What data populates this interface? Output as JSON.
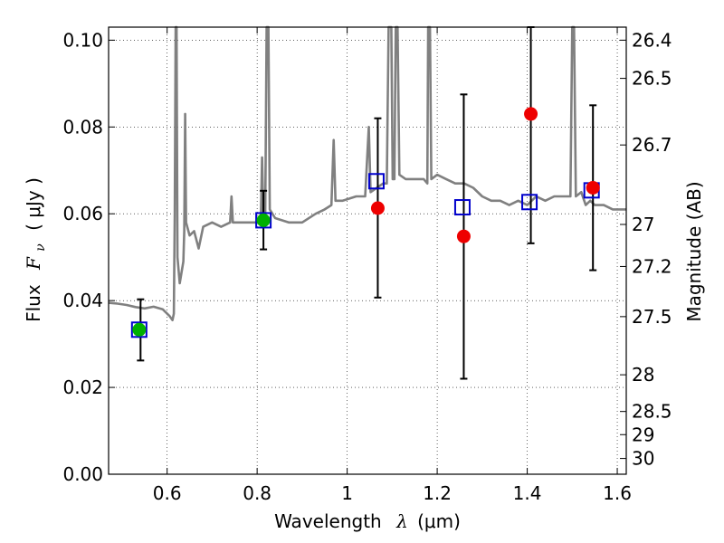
{
  "chart_data": {
    "type": "scatter",
    "title": "",
    "xlabel_prefix": "Wavelength",
    "xlabel_symbol": "λ",
    "xlabel_unit": "(μm)",
    "ylabel_prefix": "Flux",
    "ylabel_symbol": "F",
    "ylabel_sub": "ν",
    "ylabel_unit": "( μJy )",
    "y2label": "Magnitude (AB)",
    "xlim": [
      0.47,
      1.62
    ],
    "ylim": [
      0.0,
      0.103
    ],
    "grid": true,
    "x_ticks": [
      0.6,
      0.8,
      1.0,
      1.2,
      1.4,
      1.6
    ],
    "x_tick_labels": [
      "0.6",
      "0.8",
      "1",
      "1.2",
      "1.4",
      "1.6"
    ],
    "y_ticks": [
      0.0,
      0.02,
      0.04,
      0.06,
      0.08,
      0.1
    ],
    "y_tick_labels": [
      "0.00",
      "0.02",
      "0.04",
      "0.06",
      "0.08",
      "0.10"
    ],
    "mag_ticks": [
      {
        "value": 26.4,
        "label": "26.4"
      },
      {
        "value": 26.5,
        "label": "26.5"
      },
      {
        "value": 26.7,
        "label": "26.7"
      },
      {
        "value": 27.0,
        "label": "27"
      },
      {
        "value": 27.2,
        "label": "27.2"
      },
      {
        "value": 27.5,
        "label": "27.5"
      },
      {
        "value": 28.0,
        "label": "28"
      },
      {
        "value": 28.5,
        "label": "28.5"
      },
      {
        "value": 29.0,
        "label": "29"
      },
      {
        "value": 30.0,
        "label": "30"
      }
    ],
    "series": [
      {
        "name": "model spectrum",
        "kind": "line",
        "color": "#808080",
        "points": [
          [
            0.47,
            0.0395
          ],
          [
            0.49,
            0.0393
          ],
          [
            0.51,
            0.039
          ],
          [
            0.53,
            0.0385
          ],
          [
            0.55,
            0.0382
          ],
          [
            0.57,
            0.0386
          ],
          [
            0.59,
            0.038
          ],
          [
            0.605,
            0.0365
          ],
          [
            0.612,
            0.0355
          ],
          [
            0.615,
            0.037
          ],
          [
            0.617,
            0.06
          ],
          [
            0.619,
            0.103
          ],
          [
            0.621,
            0.103
          ],
          [
            0.623,
            0.05
          ],
          [
            0.628,
            0.044
          ],
          [
            0.636,
            0.049
          ],
          [
            0.638,
            0.056
          ],
          [
            0.64,
            0.083
          ],
          [
            0.642,
            0.058
          ],
          [
            0.65,
            0.055
          ],
          [
            0.66,
            0.056
          ],
          [
            0.67,
            0.052
          ],
          [
            0.68,
            0.057
          ],
          [
            0.7,
            0.058
          ],
          [
            0.72,
            0.057
          ],
          [
            0.74,
            0.058
          ],
          [
            0.743,
            0.064
          ],
          [
            0.746,
            0.058
          ],
          [
            0.76,
            0.058
          ],
          [
            0.78,
            0.058
          ],
          [
            0.8,
            0.058
          ],
          [
            0.808,
            0.0575
          ],
          [
            0.811,
            0.073
          ],
          [
            0.814,
            0.058
          ],
          [
            0.818,
            0.06
          ],
          [
            0.821,
            0.103
          ],
          [
            0.825,
            0.103
          ],
          [
            0.828,
            0.061
          ],
          [
            0.84,
            0.059
          ],
          [
            0.87,
            0.058
          ],
          [
            0.9,
            0.058
          ],
          [
            0.93,
            0.06
          ],
          [
            0.95,
            0.061
          ],
          [
            0.965,
            0.062
          ],
          [
            0.97,
            0.077
          ],
          [
            0.974,
            0.063
          ],
          [
            0.99,
            0.063
          ],
          [
            1.02,
            0.064
          ],
          [
            1.04,
            0.064
          ],
          [
            1.048,
            0.08
          ],
          [
            1.052,
            0.065
          ],
          [
            1.08,
            0.067
          ],
          [
            1.088,
            0.067
          ],
          [
            1.092,
            0.103
          ],
          [
            1.098,
            0.103
          ],
          [
            1.101,
            0.068
          ],
          [
            1.105,
            0.068
          ],
          [
            1.108,
            0.103
          ],
          [
            1.112,
            0.103
          ],
          [
            1.116,
            0.069
          ],
          [
            1.13,
            0.068
          ],
          [
            1.15,
            0.068
          ],
          [
            1.17,
            0.068
          ],
          [
            1.178,
            0.067
          ],
          [
            1.18,
            0.103
          ],
          [
            1.184,
            0.103
          ],
          [
            1.187,
            0.068
          ],
          [
            1.2,
            0.069
          ],
          [
            1.22,
            0.068
          ],
          [
            1.24,
            0.067
          ],
          [
            1.26,
            0.067
          ],
          [
            1.28,
            0.066
          ],
          [
            1.3,
            0.064
          ],
          [
            1.32,
            0.063
          ],
          [
            1.34,
            0.063
          ],
          [
            1.36,
            0.062
          ],
          [
            1.38,
            0.063
          ],
          [
            1.4,
            0.062
          ],
          [
            1.42,
            0.064
          ],
          [
            1.44,
            0.063
          ],
          [
            1.46,
            0.064
          ],
          [
            1.48,
            0.064
          ],
          [
            1.496,
            0.064
          ],
          [
            1.5,
            0.103
          ],
          [
            1.504,
            0.103
          ],
          [
            1.508,
            0.064
          ],
          [
            1.52,
            0.065
          ],
          [
            1.53,
            0.062
          ],
          [
            1.54,
            0.063
          ],
          [
            1.55,
            0.062
          ],
          [
            1.57,
            0.062
          ],
          [
            1.59,
            0.061
          ],
          [
            1.62,
            0.061
          ]
        ]
      },
      {
        "name": "model photometry",
        "kind": "open-square",
        "color": "#0000cc",
        "points": [
          [
            0.538,
            0.0333
          ],
          [
            0.814,
            0.0585
          ],
          [
            1.065,
            0.0675
          ],
          [
            1.256,
            0.0615
          ],
          [
            1.405,
            0.0627
          ],
          [
            1.543,
            0.0654
          ]
        ]
      },
      {
        "name": "observed flux with error",
        "kind": "errorbar",
        "color": "#000000",
        "points": [
          {
            "x": 0.541,
            "y": 0.0333,
            "lo": 0.0262,
            "hi": 0.0403
          },
          {
            "x": 0.814,
            "y": 0.0585,
            "lo": 0.0518,
            "hi": 0.0653
          },
          {
            "x": 1.068,
            "y": 0.0613,
            "lo": 0.0407,
            "hi": 0.082
          },
          {
            "x": 1.259,
            "y": 0.0548,
            "lo": 0.022,
            "hi": 0.0875
          },
          {
            "x": 1.408,
            "y": 0.083,
            "lo": 0.0532,
            "hi": 0.103
          },
          {
            "x": 1.546,
            "y": 0.066,
            "lo": 0.047,
            "hi": 0.085
          }
        ]
      },
      {
        "name": "detections",
        "kind": "dot",
        "color": "#00b000",
        "points": [
          [
            0.538,
            0.0333
          ],
          [
            0.814,
            0.0585
          ]
        ]
      },
      {
        "name": "measurements",
        "kind": "dot",
        "color": "#ee0000",
        "points": [
          [
            1.068,
            0.0613
          ],
          [
            1.259,
            0.0548
          ],
          [
            1.408,
            0.083
          ],
          [
            1.546,
            0.066
          ]
        ]
      }
    ]
  }
}
